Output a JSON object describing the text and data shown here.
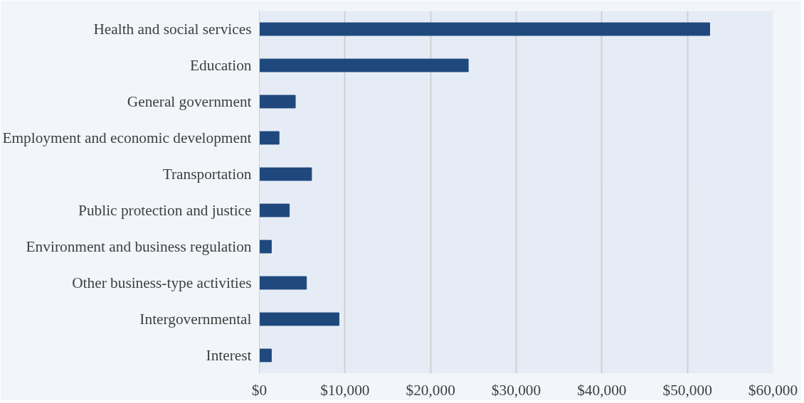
{
  "chart_data": {
    "type": "bar",
    "orientation": "horizontal",
    "categories": [
      "Health and social services",
      "Education",
      "General government",
      "Employment and economic development",
      "Transportation",
      "Public protection and justice",
      "Environment and business regulation",
      "Other business-type activities",
      "Intergovernmental",
      "Interest"
    ],
    "values": [
      52600,
      24400,
      4200,
      2300,
      6100,
      3500,
      1400,
      5500,
      9300,
      1400
    ],
    "color": "#1f497d",
    "xlim": [
      0,
      60000
    ],
    "xticks": [
      {
        "value": 0,
        "label": "$0"
      },
      {
        "value": 10000,
        "label": "$10,000"
      },
      {
        "value": 20000,
        "label": "$20,000"
      },
      {
        "value": 30000,
        "label": "$30,000"
      },
      {
        "value": 40000,
        "label": "$40,000"
      },
      {
        "value": 50000,
        "label": "$50,000"
      },
      {
        "value": 60000,
        "label": "$60,000"
      }
    ],
    "grid": "x"
  }
}
